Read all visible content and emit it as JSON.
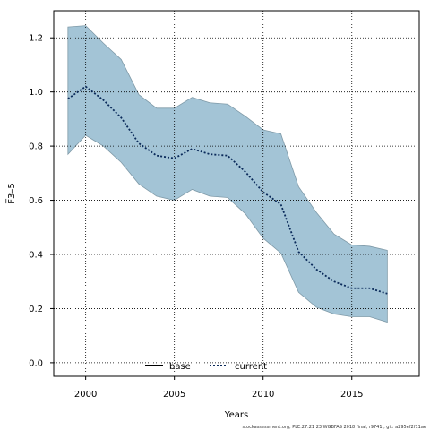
{
  "chart_data": {
    "type": "line",
    "xlabel": "Years",
    "ylabel": "F̅3–5",
    "xlim": [
      1998.2,
      2018.8
    ],
    "ylim": [
      -0.05,
      1.3
    ],
    "x_ticks": [
      2000,
      2005,
      2010,
      2015
    ],
    "y_ticks": [
      0.0,
      0.2,
      0.4,
      0.6,
      0.8,
      1.0,
      1.2
    ],
    "grid": true,
    "legend_position": "bottom-center",
    "band": {
      "color": "#a3c4d6",
      "x": [
        1999,
        2000,
        2001,
        2002,
        2003,
        2004,
        2005,
        2006,
        2007,
        2008,
        2009,
        2010,
        2011,
        2012,
        2013,
        2014,
        2015,
        2016,
        2017
      ],
      "upper": [
        1.24,
        1.245,
        1.18,
        1.12,
        0.99,
        0.94,
        0.94,
        0.98,
        0.96,
        0.955,
        0.91,
        0.86,
        0.845,
        0.65,
        0.555,
        0.475,
        0.435,
        0.43,
        0.415
      ],
      "lower": [
        0.77,
        0.84,
        0.8,
        0.74,
        0.66,
        0.615,
        0.6,
        0.64,
        0.615,
        0.61,
        0.55,
        0.46,
        0.405,
        0.26,
        0.205,
        0.18,
        0.17,
        0.17,
        0.15
      ]
    },
    "series": [
      {
        "name": "base",
        "style": "solid",
        "color": "#000000",
        "values": []
      },
      {
        "name": "current",
        "style": "dotted",
        "color": "#0a2a5a",
        "x": [
          1999,
          2000,
          2001,
          2002,
          2003,
          2004,
          2005,
          2006,
          2007,
          2008,
          2009,
          2010,
          2011,
          2012,
          2013,
          2014,
          2015,
          2016,
          2017
        ],
        "values": [
          0.975,
          1.02,
          0.97,
          0.905,
          0.81,
          0.765,
          0.755,
          0.79,
          0.77,
          0.765,
          0.705,
          0.63,
          0.585,
          0.41,
          0.345,
          0.3,
          0.275,
          0.275,
          0.255
        ]
      }
    ]
  },
  "footer": "stockassessment.org, PLE.27.21 23 WGBFAS 2018 final, r9741 , git: a295ef2f11ae"
}
